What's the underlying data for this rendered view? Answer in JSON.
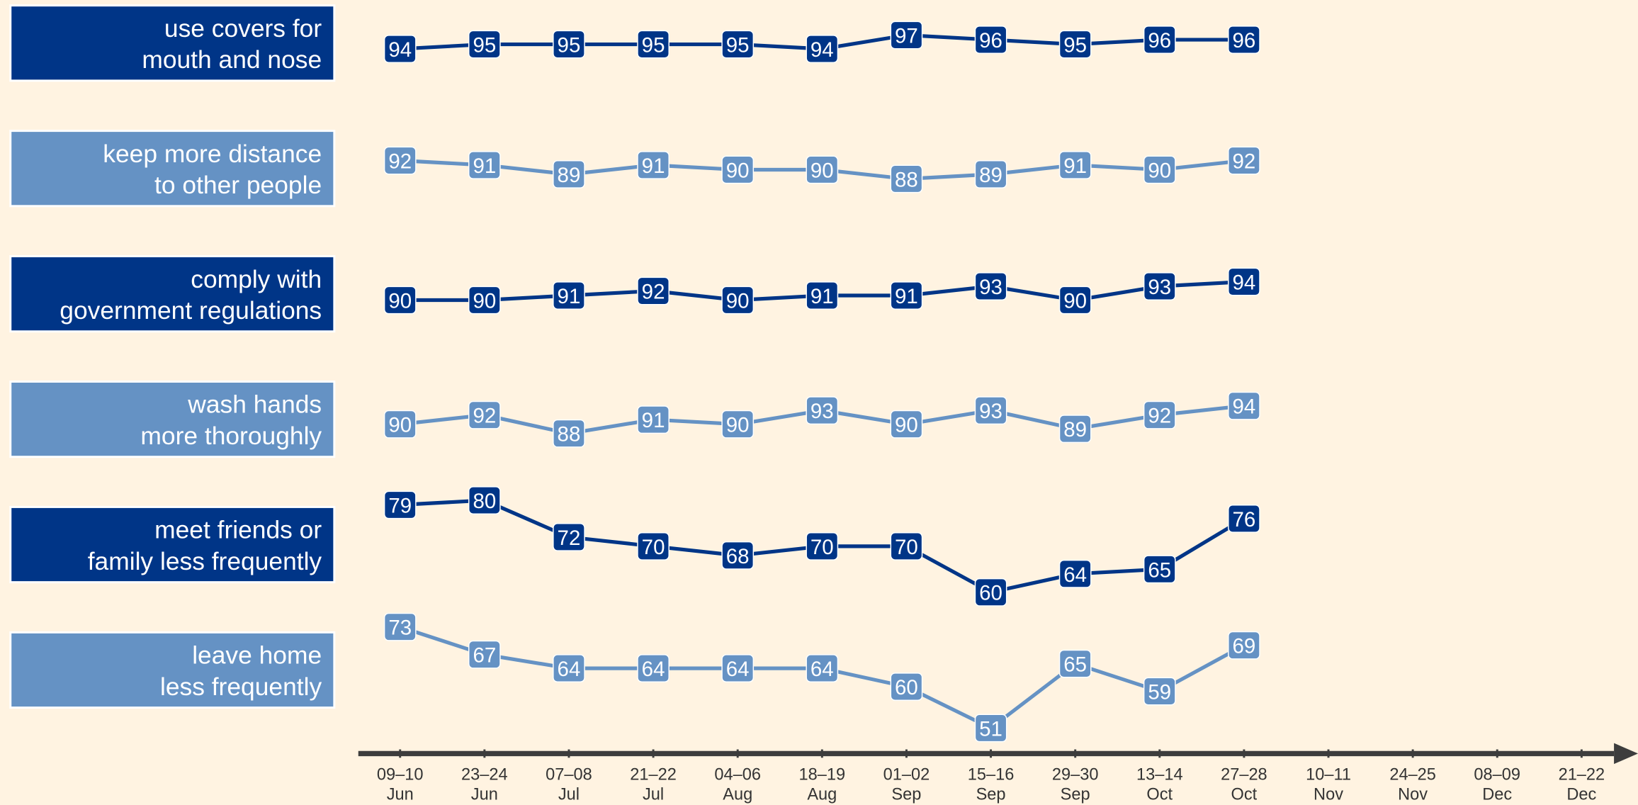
{
  "chart_data": {
    "type": "line",
    "categories": [
      "09–10\nJun",
      "23–24\nJun",
      "07–08\nJul",
      "21–22\nJul",
      "04–06\nAug",
      "18–19\nAug",
      "01–02\nSep",
      "15–16\nSep",
      "29–30\nSep",
      "13–14\nOct",
      "27–28\nOct",
      "10–11\nNov",
      "24–25\nNov",
      "08–09\nDec",
      "21–22\nDec"
    ],
    "series": [
      {
        "name": "use covers for\nmouth and nose",
        "color": "#003587",
        "values": [
          94,
          95,
          95,
          95,
          95,
          94,
          97,
          96,
          95,
          96,
          96,
          null,
          null,
          null,
          null
        ]
      },
      {
        "name": "keep more distance\nto other people",
        "color": "#6592c4",
        "values": [
          92,
          91,
          89,
          91,
          90,
          90,
          88,
          89,
          91,
          90,
          92,
          null,
          null,
          null,
          null
        ]
      },
      {
        "name": "comply with\ngovernment regulations",
        "color": "#003587",
        "values": [
          90,
          90,
          91,
          92,
          90,
          91,
          91,
          93,
          90,
          93,
          94,
          null,
          null,
          null,
          null
        ]
      },
      {
        "name": "wash hands\nmore thoroughly",
        "color": "#6592c4",
        "values": [
          90,
          92,
          88,
          91,
          90,
          93,
          90,
          93,
          89,
          92,
          94,
          null,
          null,
          null,
          null
        ]
      },
      {
        "name": "meet friends or\nfamily less frequently",
        "color": "#003587",
        "values": [
          79,
          80,
          72,
          70,
          68,
          70,
          70,
          60,
          64,
          65,
          76,
          null,
          null,
          null,
          null
        ]
      },
      {
        "name": "leave home\nless frequently",
        "color": "#6592c4",
        "values": [
          73,
          67,
          64,
          64,
          64,
          64,
          60,
          51,
          65,
          59,
          69,
          null,
          null,
          null,
          null
        ]
      }
    ]
  }
}
